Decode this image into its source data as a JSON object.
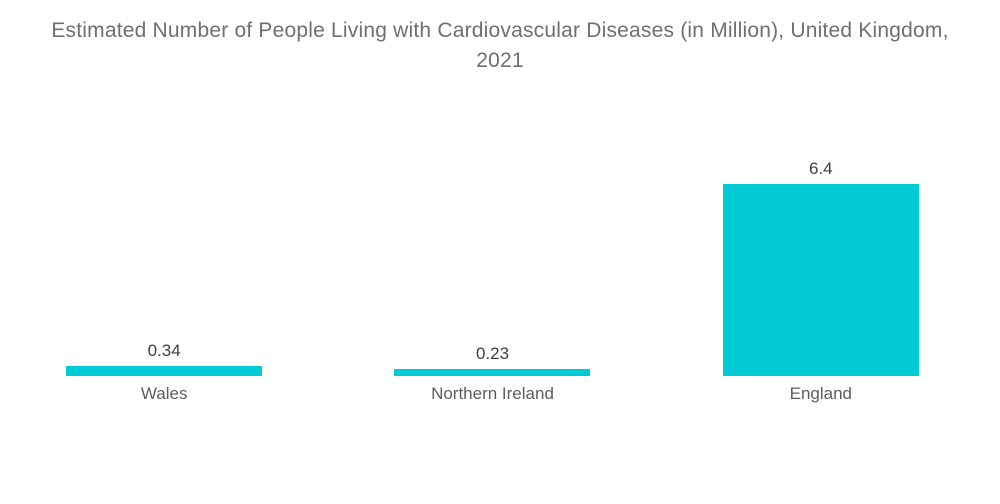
{
  "title": "Estimated Number of People Living with Cardiovascular Diseases (in Million), United Kingdom, 2021",
  "chart_data": {
    "type": "bar",
    "title": "Estimated Number of People Living with Cardiovascular Diseases (in Million), United Kingdom, 2021",
    "categories": [
      "Wales",
      "Northern Ireland",
      "England"
    ],
    "values": [
      0.34,
      0.23,
      6.4
    ],
    "value_labels": [
      "0.34",
      "0.23",
      "6.4"
    ],
    "xlabel": "",
    "ylabel": "",
    "ylim": [
      0,
      6.4
    ],
    "grid": false,
    "axes_visible": false,
    "legend_position": "none",
    "bar_color": "#00cbd4"
  },
  "colors": {
    "background": "#ffffff",
    "bar": "#00cbd4",
    "title_text": "#6f6f6f",
    "value_text": "#3f3f3f",
    "category_text": "#5d5d5d"
  }
}
